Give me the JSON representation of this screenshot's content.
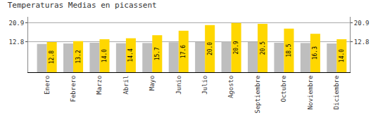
{
  "chart_data": {
    "type": "bar",
    "title": "Temperaturas Medias en picassent",
    "categories": [
      "Enero",
      "Febrero",
      "Marzo",
      "Abril",
      "Mayo",
      "Junio",
      "Julio",
      "Agosto",
      "Septiembre",
      "Octubre",
      "Noviembre",
      "Diciembre"
    ],
    "series": [
      {
        "color": "#BEBEBE",
        "values": [
          12.0,
          12.2,
          12.5,
          12.3,
          12.4,
          12.7,
          12.8,
          13.0,
          12.8,
          12.5,
          12.4,
          12.2
        ]
      },
      {
        "color": "#FFD700",
        "values": [
          12.8,
          13.2,
          14.0,
          14.4,
          15.7,
          17.6,
          20.0,
          20.9,
          20.5,
          18.5,
          16.3,
          14.0
        ],
        "value_labels": [
          "12.8",
          "13.2",
          "14.0",
          "14.4",
          "15.7",
          "17.6",
          "20.0",
          "20.9",
          "20.5",
          "18.5",
          "16.3",
          "14.0"
        ],
        "data_labels": true
      }
    ],
    "ylim": [
      0,
      23.5
    ],
    "yticks": [
      12.8,
      20.9
    ],
    "y2lim": [
      0,
      23.5
    ],
    "y2ticks": [
      12.8,
      20.9
    ],
    "grid": true
  }
}
